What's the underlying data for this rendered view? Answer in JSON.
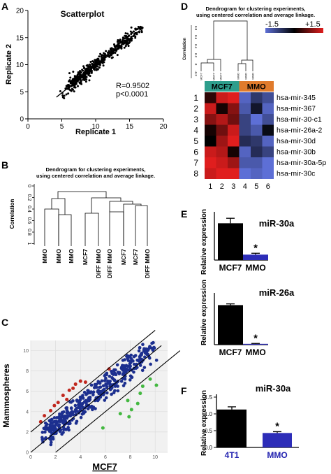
{
  "figure": {
    "panel_labels": [
      "A",
      "B",
      "C",
      "D",
      "E",
      "F"
    ]
  },
  "chart_data": [
    {
      "panel": "A",
      "type": "scatter",
      "title": "Scatterplot",
      "xlabel": "Replicate 1",
      "ylabel": "Replicate 2",
      "xlim": [
        0,
        20
      ],
      "ylim": [
        0,
        20
      ],
      "xticks": [
        "0",
        "5",
        "10",
        "15",
        "20"
      ],
      "yticks": [
        "0",
        "5",
        "10",
        "15",
        "20"
      ],
      "annotation": [
        "R=0.9502",
        "p<0.0001"
      ],
      "fit_line": [
        [
          4.2,
          4.0
        ],
        [
          16.5,
          16.3
        ]
      ],
      "point_color": "#000000"
    },
    {
      "panel": "B",
      "type": "dendrogram",
      "title": "Dendrogram for clustering experiments,",
      "subtitle": "using centered correlation and average linkage.",
      "ylabel": "Correlation",
      "yticks": [
        "0",
        "0.2",
        "0.4",
        "0.6",
        "0.8",
        "1"
      ],
      "leaves": [
        "MMO",
        "MMO",
        "MMO",
        "MCF7",
        "DIFF MMO",
        "DIFF MMO",
        "MCF7",
        "MCF7",
        "DIFF MMO"
      ]
    },
    {
      "panel": "C",
      "type": "scatter",
      "xlabel": "MCF7",
      "ylabel": "Mammospheres",
      "xlim": [
        0,
        11
      ],
      "ylim": [
        0,
        11
      ],
      "xticks": [
        "0",
        "2",
        "4",
        "6",
        "8",
        "10"
      ],
      "yticks": [
        "0",
        "2",
        "4",
        "6",
        "8",
        "10"
      ],
      "series_colors": {
        "unchanged": "#1c2f8f",
        "up": "#c0281f",
        "down": "#43b840"
      },
      "fold_lines": [
        {
          "from": [
            0,
            2
          ],
          "to": [
            10,
            12
          ]
        },
        {
          "from": [
            0,
            0
          ],
          "to": [
            10.5,
            10.5
          ]
        },
        {
          "from": [
            2,
            0
          ],
          "to": [
            12,
            10
          ]
        }
      ],
      "up": [
        [
          1.6,
          4.1
        ],
        [
          2.2,
          4.9
        ],
        [
          2.6,
          5.6
        ],
        [
          3.1,
          6.1
        ],
        [
          3.6,
          6.7
        ],
        [
          4.0,
          7.0
        ],
        [
          1.1,
          3.6
        ],
        [
          0.8,
          3.0
        ],
        [
          2.9,
          5.2
        ],
        [
          3.4,
          6.3
        ],
        [
          4.4,
          6.9
        ],
        [
          6.3,
          8.2
        ],
        [
          1.9,
          4.6
        ]
      ],
      "down": [
        [
          7.2,
          3.8
        ],
        [
          8.6,
          4.8
        ],
        [
          8.1,
          4.2
        ],
        [
          7.8,
          5.1
        ],
        [
          8.8,
          5.8
        ],
        [
          9.0,
          6.5
        ],
        [
          9.6,
          7.2
        ],
        [
          10.1,
          6.6
        ],
        [
          5.8,
          2.4
        ],
        [
          7.9,
          3.5
        ]
      ],
      "n_unchanged": 420
    },
    {
      "panel": "D",
      "type": "heatmap",
      "title": "Dendrogram for clustering experiments,",
      "subtitle": "using centered correlation and average linkage.",
      "ylabel": "Correlation",
      "yticks": [
        "0.8",
        "0.6",
        "0.4",
        "0.2",
        "0",
        "-0.2"
      ],
      "dendro_leaves": [
        "MCF7",
        "MCF7",
        "MCF7",
        "MMO",
        "MMO",
        "MMO"
      ],
      "color_scale": {
        "min_label": "-1.5",
        "max_label": "+1.5",
        "low": "#5d6fd6",
        "mid": "#000000",
        "high": "#e01e1e"
      },
      "groups": [
        {
          "label": "MCF7",
          "color": "#2e9e8c"
        },
        {
          "label": "MMO",
          "color": "#e07b2c"
        }
      ],
      "columns": [
        "1",
        "2",
        "3",
        "4",
        "5",
        "6"
      ],
      "row_numbers": [
        "1",
        "2",
        "3",
        "4",
        "5",
        "6",
        "7",
        "8"
      ],
      "rows": [
        "hsa-mir-345",
        "hsa-mir-367",
        "hsa-mir-30-c1",
        "hsa-mir-26a-2",
        "hsa-mir-30d",
        "hsa-mir-30b",
        "hsa-mir-30a-5p",
        "hsa-mir-30c"
      ],
      "values": [
        [
          0.2,
          0.9,
          1.0,
          -0.9,
          -0.5,
          -0.7
        ],
        [
          0.9,
          0.1,
          0.6,
          -0.8,
          -0.2,
          -0.9
        ],
        [
          0.6,
          0.8,
          0.5,
          -0.6,
          -1.0,
          -0.7
        ],
        [
          0.1,
          0.5,
          0.9,
          -0.6,
          -0.8,
          -0.1
        ],
        [
          0.0,
          0.7,
          1.0,
          -0.4,
          -0.5,
          -0.9
        ],
        [
          0.9,
          0.8,
          0.1,
          -0.9,
          -0.4,
          -0.6
        ],
        [
          1.0,
          0.9,
          0.7,
          -0.8,
          -0.8,
          -1.0
        ],
        [
          0.9,
          1.0,
          1.0,
          -1.0,
          -0.9,
          -1.0
        ]
      ]
    },
    {
      "panel": "E",
      "type": "bar",
      "title": "miR-30a",
      "ylabel": "Relative expression",
      "categories": [
        "MCF7",
        "MMO"
      ],
      "values": [
        0.81,
        0.12
      ],
      "errors": [
        0.11,
        0.03
      ],
      "bar_colors": [
        "#000000",
        "#2d2db8"
      ],
      "ylim": [
        0,
        1.0
      ],
      "significance": [
        "",
        "*"
      ]
    },
    {
      "panel": "E",
      "type": "bar",
      "title": "miR-26a",
      "ylabel": "Relative expression",
      "categories": [
        "MCF7",
        "MMO"
      ],
      "values": [
        0.97,
        0.02
      ],
      "errors": [
        0.03,
        0.01
      ],
      "bar_colors": [
        "#000000",
        "#2d2db8"
      ],
      "ylim": [
        0,
        1.2
      ],
      "significance": [
        "",
        "*"
      ]
    },
    {
      "panel": "F",
      "type": "bar",
      "title": "miR-30a",
      "ylabel": "Relative expression",
      "categories": [
        "4T1",
        "MMO"
      ],
      "values": [
        1.13,
        0.43
      ],
      "errors": [
        0.08,
        0.04
      ],
      "bar_colors": [
        "#000000",
        "#2d2db8"
      ],
      "category_label_color": "#2323b0",
      "ylim": [
        0,
        1.5
      ],
      "yticks": [
        "0.0",
        "0.5",
        "1.0",
        "1.5"
      ],
      "significance": [
        "",
        "*"
      ]
    }
  ]
}
